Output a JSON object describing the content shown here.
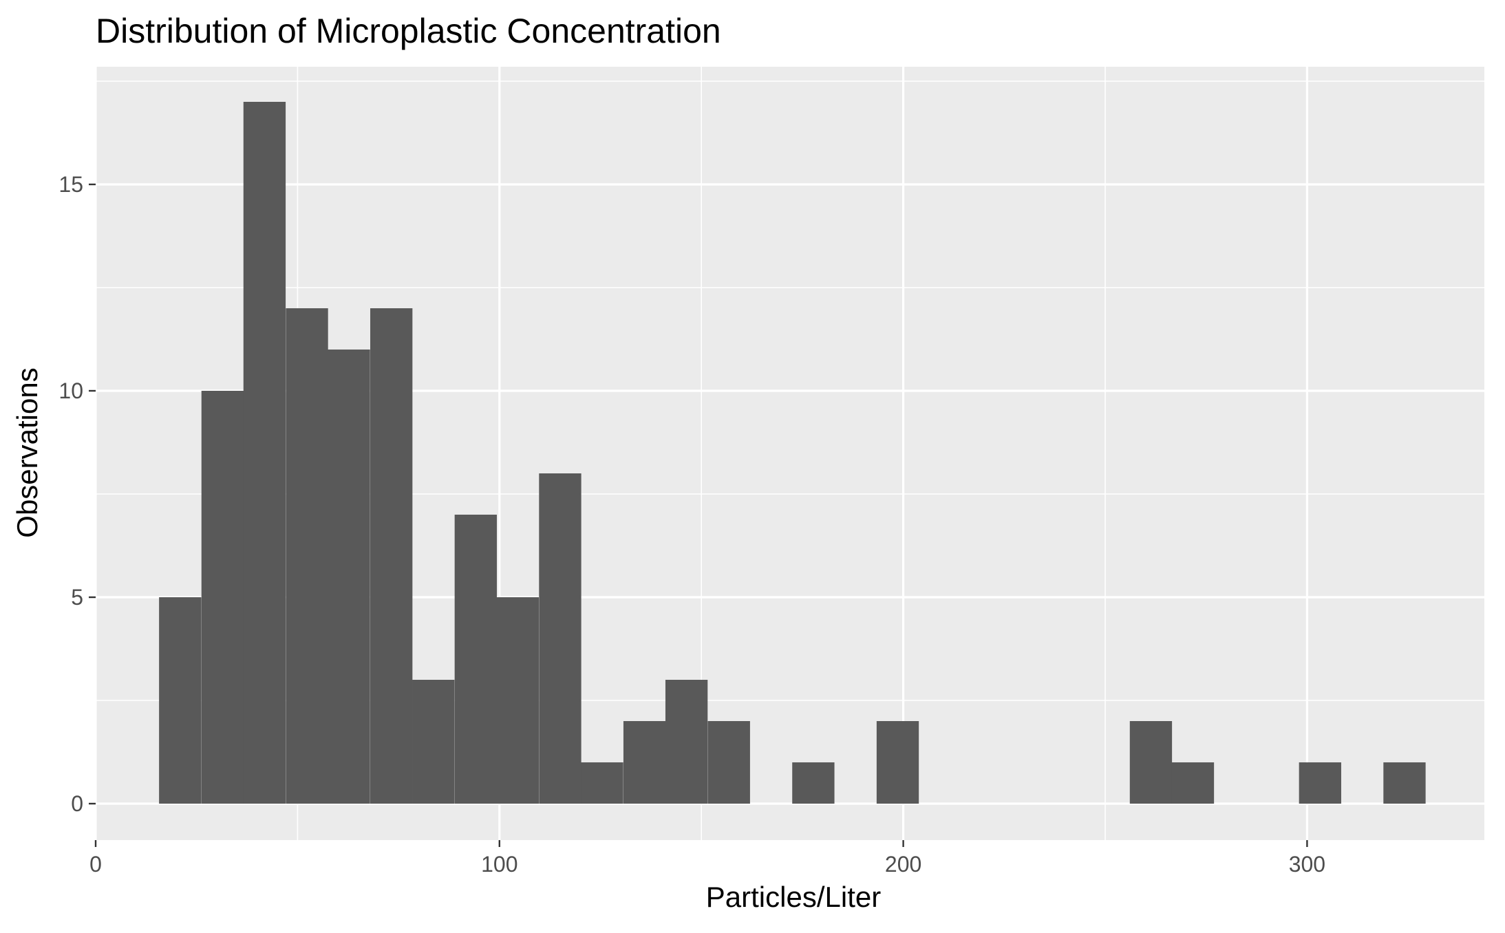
{
  "chart_data": {
    "type": "histogram",
    "title": "Distribution of Microplastic Concentration",
    "xlabel": "Particles/Liter",
    "ylabel": "Observations",
    "xlim": [
      0,
      345
    ],
    "ylim": [
      0,
      17
    ],
    "x_ticks": [
      0,
      100,
      200,
      300
    ],
    "x_tick_labels": [
      "0",
      "100",
      "200",
      "300"
    ],
    "y_ticks": [
      0,
      5,
      10,
      15
    ],
    "y_tick_labels": [
      "0",
      "5",
      "10",
      "15"
    ],
    "bin_width": 10.45,
    "bins": [
      {
        "start": 15.7,
        "count": 5
      },
      {
        "start": 26.2,
        "count": 10
      },
      {
        "start": 36.6,
        "count": 17
      },
      {
        "start": 47.1,
        "count": 12
      },
      {
        "start": 57.5,
        "count": 11
      },
      {
        "start": 68.0,
        "count": 12
      },
      {
        "start": 78.4,
        "count": 3
      },
      {
        "start": 88.9,
        "count": 7
      },
      {
        "start": 99.3,
        "count": 5
      },
      {
        "start": 109.8,
        "count": 8
      },
      {
        "start": 120.2,
        "count": 1
      },
      {
        "start": 130.7,
        "count": 2
      },
      {
        "start": 141.1,
        "count": 3
      },
      {
        "start": 151.6,
        "count": 2
      },
      {
        "start": 172.5,
        "count": 1
      },
      {
        "start": 193.4,
        "count": 2
      },
      {
        "start": 256.1,
        "count": 2
      },
      {
        "start": 266.5,
        "count": 1
      },
      {
        "start": 298.0,
        "count": 1
      },
      {
        "start": 318.9,
        "count": 1
      }
    ],
    "grid": true,
    "legend": "none",
    "colors": {
      "bar_fill": "#595959",
      "panel_background": "#ebebeb",
      "grid_major": "#ffffff",
      "grid_minor": "#ffffff"
    }
  }
}
